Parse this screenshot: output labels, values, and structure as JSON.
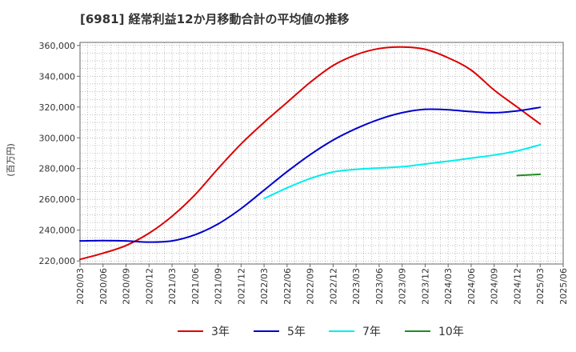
{
  "chart_data": {
    "type": "line",
    "title": "[6981]  経常利益12か月移動合計の平均値の推移",
    "ylabel": "(百万円)",
    "xlabel": "",
    "ylim": [
      218000,
      362000
    ],
    "yticks": [
      220000,
      240000,
      260000,
      280000,
      300000,
      320000,
      340000,
      360000
    ],
    "ytick_labels": [
      "220,000",
      "240,000",
      "260,000",
      "280,000",
      "300,000",
      "320,000",
      "340,000",
      "360,000"
    ],
    "xlim": [
      "2020-03",
      "2025-06"
    ],
    "xtick_labels": [
      "2020/03",
      "2020/06",
      "2020/09",
      "2020/12",
      "2021/03",
      "2021/06",
      "2021/09",
      "2021/12",
      "2022/03",
      "2022/06",
      "2022/09",
      "2022/12",
      "2023/03",
      "2023/06",
      "2023/09",
      "2023/12",
      "2024/03",
      "2024/06",
      "2024/09",
      "2024/12",
      "2025/03",
      "2025/06"
    ],
    "grid": true,
    "legend_position": "bottom",
    "series": [
      {
        "name": "3年",
        "color": "#dd0000",
        "points": [
          [
            "2020-03",
            221000
          ],
          [
            "2020-06",
            225000
          ],
          [
            "2020-09",
            230000
          ],
          [
            "2020-12",
            238000
          ],
          [
            "2021-03",
            249000
          ],
          [
            "2021-06",
            263000
          ],
          [
            "2021-09",
            280000
          ],
          [
            "2021-12",
            296000
          ],
          [
            "2022-03",
            310000
          ],
          [
            "2022-06",
            323000
          ],
          [
            "2022-09",
            336000
          ],
          [
            "2022-12",
            347000
          ],
          [
            "2023-03",
            354000
          ],
          [
            "2023-06",
            358000
          ],
          [
            "2023-09",
            359000
          ],
          [
            "2023-12",
            357500
          ],
          [
            "2024-03",
            352000
          ],
          [
            "2024-06",
            344000
          ],
          [
            "2024-09",
            331000
          ],
          [
            "2024-12",
            320000
          ],
          [
            "2025-03",
            309000
          ]
        ]
      },
      {
        "name": "5年",
        "color": "#0000cc",
        "points": [
          [
            "2020-03",
            233000
          ],
          [
            "2020-06",
            233200
          ],
          [
            "2020-09",
            233000
          ],
          [
            "2020-12",
            232200
          ],
          [
            "2021-03",
            233000
          ],
          [
            "2021-06",
            237000
          ],
          [
            "2021-09",
            244000
          ],
          [
            "2021-12",
            254000
          ],
          [
            "2022-03",
            266000
          ],
          [
            "2022-06",
            278000
          ],
          [
            "2022-09",
            289000
          ],
          [
            "2022-12",
            298500
          ],
          [
            "2023-03",
            306000
          ],
          [
            "2023-06",
            312000
          ],
          [
            "2023-09",
            316300
          ],
          [
            "2023-12",
            318500
          ],
          [
            "2024-03",
            318200
          ],
          [
            "2024-06",
            317000
          ],
          [
            "2024-09",
            316300
          ],
          [
            "2024-12",
            317500
          ],
          [
            "2025-03",
            319800
          ]
        ]
      },
      {
        "name": "7年",
        "color": "#00eeee",
        "points": [
          [
            "2022-03",
            260500
          ],
          [
            "2022-06",
            267500
          ],
          [
            "2022-09",
            273500
          ],
          [
            "2022-12",
            277800
          ],
          [
            "2023-03",
            279500
          ],
          [
            "2023-06",
            280400
          ],
          [
            "2023-09",
            281200
          ],
          [
            "2023-12",
            283000
          ],
          [
            "2024-03",
            284800
          ],
          [
            "2024-06",
            286800
          ],
          [
            "2024-09",
            288800
          ],
          [
            "2024-12",
            291500
          ],
          [
            "2025-03",
            295500
          ]
        ]
      },
      {
        "name": "10年",
        "color": "#228b22",
        "points": [
          [
            "2024-12",
            275500
          ],
          [
            "2025-03",
            276300
          ]
        ]
      }
    ]
  }
}
